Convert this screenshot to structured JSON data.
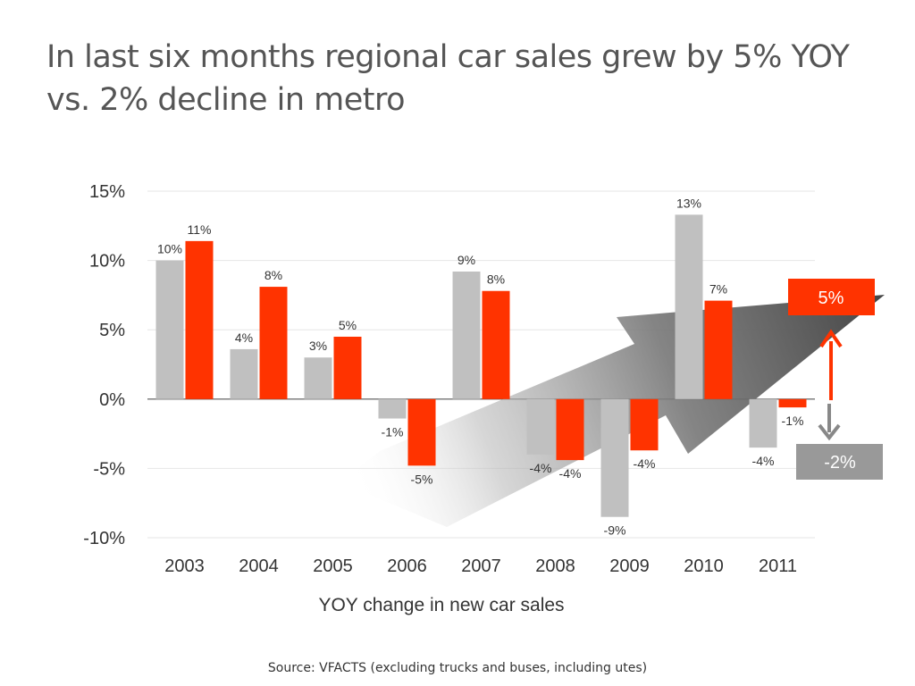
{
  "slide": {
    "title_line1": "In last six months regional car sales grew by 5% YOY",
    "title_line2": "vs. 2% decline in metro",
    "source": "Source: VFACTS (excluding trucks and buses, including utes)"
  },
  "colors": {
    "regional": "#ff3300",
    "metro": "#c0c0c0",
    "metro_box": "#999999",
    "text": "#333333",
    "grid": "#e6e6e6"
  },
  "chart_data": {
    "type": "bar",
    "categories": [
      "2003",
      "2004",
      "2005",
      "2006",
      "2007",
      "2008",
      "2009",
      "2010",
      "2011"
    ],
    "series": [
      {
        "values": [
          10,
          3.6,
          3,
          -1.4,
          9.2,
          -4,
          -8.5,
          13.3,
          -3.5
        ],
        "labels": [
          "10%",
          "4%",
          "3%",
          "-1%",
          "9%",
          "-4%",
          "-9%",
          "13%",
          "-4%"
        ],
        "color": "#c0c0c0"
      },
      {
        "values": [
          11.4,
          8.1,
          4.5,
          -4.8,
          7.8,
          -4.4,
          -3.7,
          7.1,
          -0.6
        ],
        "labels": [
          "11%",
          "8%",
          "5%",
          "-5%",
          "8%",
          "-4%",
          "-4%",
          "7%",
          "-1%"
        ],
        "color": "#ff3300"
      }
    ],
    "yticks": [
      "15%",
      "10%",
      "5%",
      "0%",
      "-5%",
      "-10%"
    ],
    "ytick_values": [
      15,
      10,
      5,
      0,
      -5,
      -10
    ],
    "ylim": [
      -10,
      15
    ],
    "xlabel": "YOY change in new car sales",
    "ylabel": "",
    "grid": true,
    "annotations": {
      "regional_callout": "5%",
      "metro_callout": "-2%"
    }
  }
}
